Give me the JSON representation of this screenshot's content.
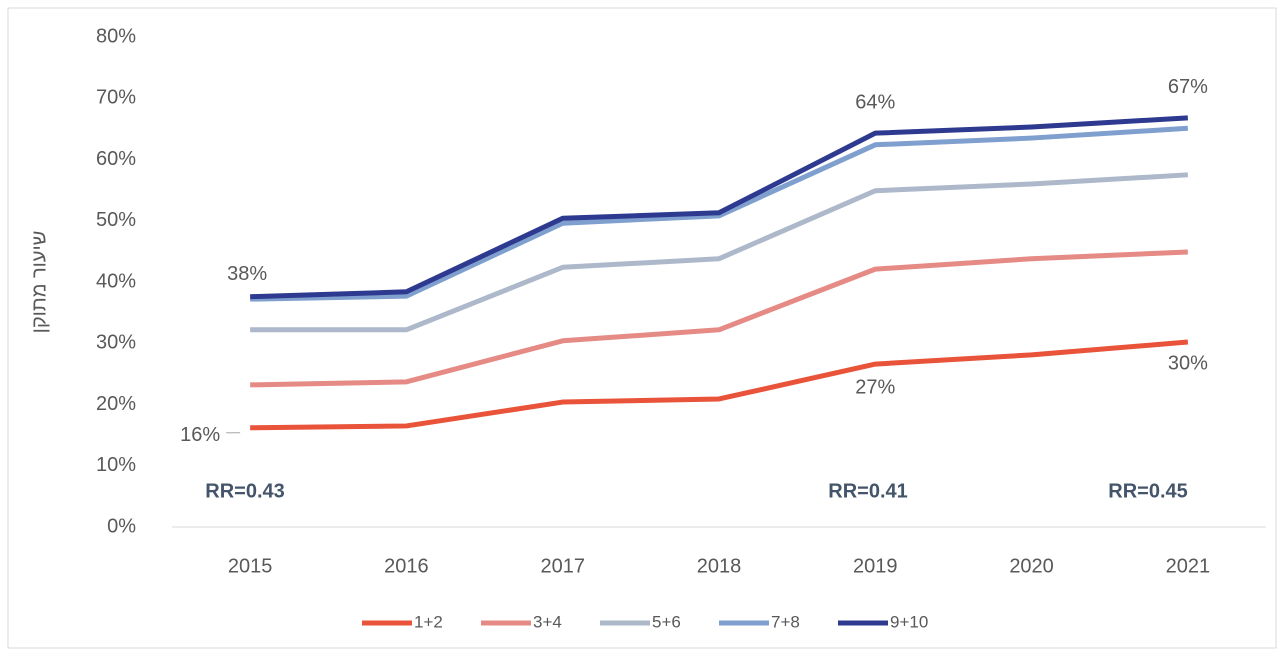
{
  "chart_data": {
    "type": "line",
    "y_label": "שיעור מתוקן",
    "x": [
      2015,
      2016,
      2017,
      2018,
      2019,
      2020,
      2021
    ],
    "series": [
      {
        "name": "1+2",
        "color": "#e8533a",
        "values": [
          16.2,
          16.5,
          20.4,
          20.9,
          26.6,
          28.1,
          30.2
        ],
        "value_labels": [
          "16%",
          null,
          null,
          null,
          "27%",
          null,
          "30%"
        ]
      },
      {
        "name": "3+4",
        "color": "#e58a84",
        "values": [
          23.2,
          23.7,
          30.4,
          32.2,
          42.1,
          43.8,
          44.9
        ]
      },
      {
        "name": "5+6",
        "color": "#adb9ca",
        "values": [
          32.2,
          32.2,
          42.4,
          43.8,
          54.9,
          56.0,
          57.5
        ]
      },
      {
        "name": "7+8",
        "color": "#7f9fcf",
        "values": [
          37.2,
          37.7,
          49.6,
          50.8,
          62.4,
          63.5,
          65.1
        ]
      },
      {
        "name": "9+10",
        "color": "#2e3a8f",
        "values": [
          37.6,
          38.4,
          50.4,
          51.3,
          64.3,
          65.3,
          66.8
        ],
        "value_labels": [
          "38%",
          null,
          null,
          null,
          "64%",
          null,
          "67%"
        ]
      }
    ],
    "annotations": [
      "RR=0.43",
      "RR=0.41",
      "RR=0.45"
    ],
    "ylim": [
      0,
      80
    ],
    "yticks": [
      {
        "value": 0,
        "label": "0%"
      },
      {
        "value": 10,
        "label": "10%"
      },
      {
        "value": 20,
        "label": "20%"
      },
      {
        "value": 30,
        "label": "30%"
      },
      {
        "value": 40,
        "label": "40%"
      },
      {
        "value": 50,
        "label": "50%"
      },
      {
        "value": 60,
        "label": "60%"
      },
      {
        "value": 70,
        "label": "70%"
      },
      {
        "value": 80,
        "label": "80%"
      }
    ],
    "grid": false,
    "legend": "bottom"
  }
}
